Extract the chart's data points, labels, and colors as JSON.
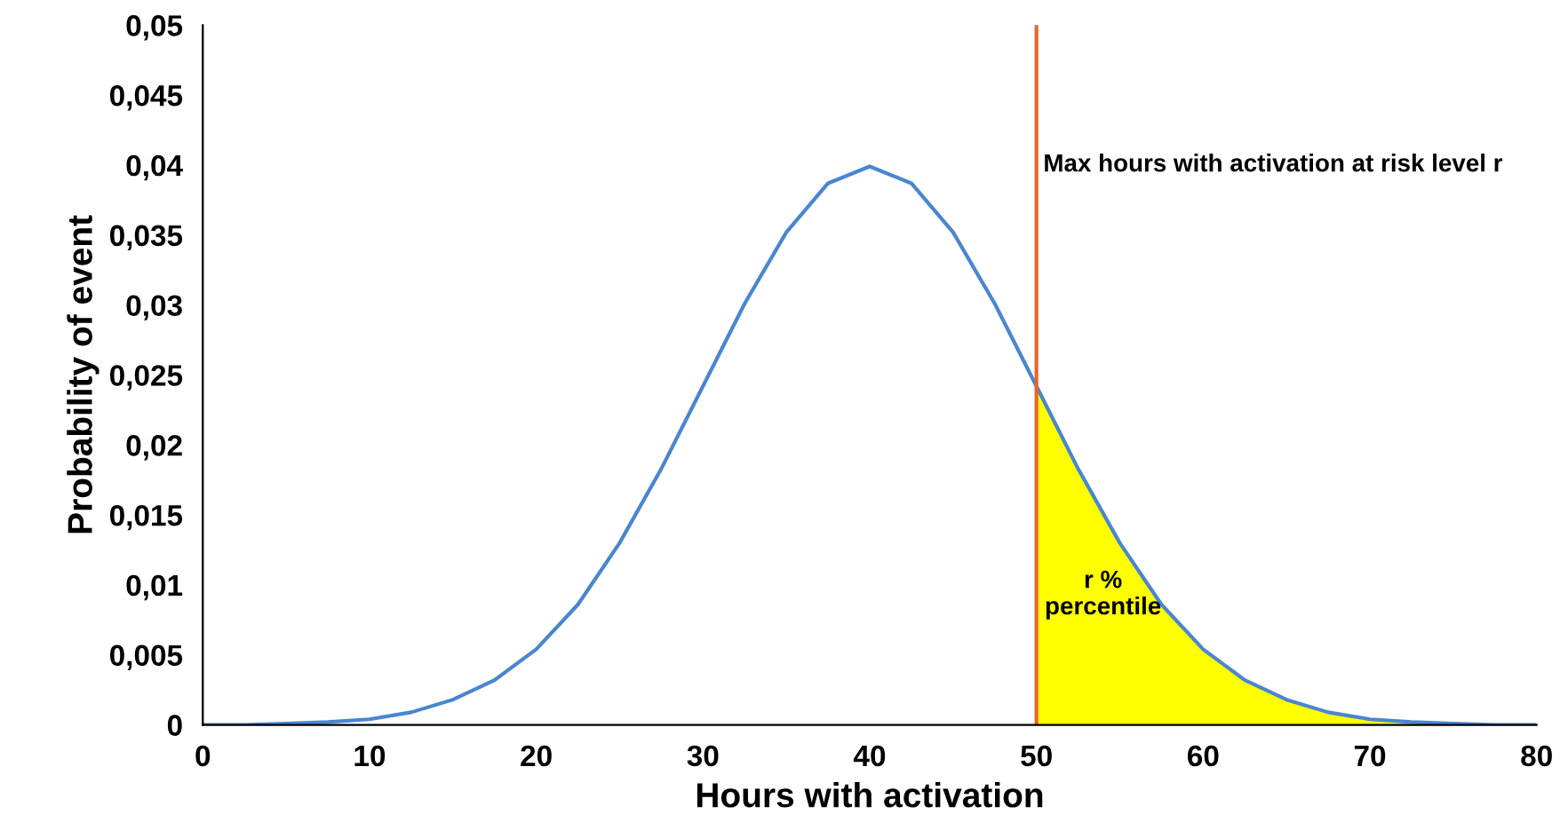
{
  "chart_data": {
    "type": "line",
    "xlabel": "Hours with activation",
    "ylabel": "Probability of event",
    "x": [
      0,
      2.5,
      5,
      7.5,
      10,
      12.5,
      15,
      17.5,
      20,
      22.5,
      25,
      27.5,
      30,
      32.5,
      35,
      37.5,
      40,
      42.5,
      45,
      47.5,
      50,
      52.5,
      55,
      57.5,
      60,
      62.5,
      65,
      67.5,
      70,
      72.5,
      75,
      77.5,
      80
    ],
    "series": [
      {
        "type": "area",
        "color": "#ffff00",
        "x": [
          50,
          52.5,
          55,
          57.5,
          60,
          62.5,
          65,
          67.5,
          70,
          72.5,
          75,
          77.5,
          80
        ],
        "values": [
          0.0242,
          0.0183,
          0.013,
          0.0086,
          0.0054,
          0.0032,
          0.0018,
          0.0009,
          0.0004,
          0.0002,
          0.0001,
          0,
          0
        ]
      },
      {
        "color": "#4a86d0",
        "values": [
          0,
          0,
          0.0001,
          0.0002,
          0.0004,
          0.0009,
          0.0018,
          0.0032,
          0.0054,
          0.0086,
          0.013,
          0.0183,
          0.0242,
          0.0301,
          0.0352,
          0.0387,
          0.0399,
          0.0387,
          0.0352,
          0.0301,
          0.0242,
          0.0183,
          0.013,
          0.0086,
          0.0054,
          0.0032,
          0.0018,
          0.0009,
          0.0004,
          0.0002,
          0.0001,
          0,
          0
        ]
      }
    ],
    "ref_lines": [
      {
        "axis": "x",
        "value": 50,
        "label": "Max hours with activation at risk level r",
        "color": "#e8642c"
      }
    ],
    "annotations": [
      {
        "text": "r %\npercentile",
        "x": 50.5,
        "y": 0.0093
      }
    ],
    "xlim": [
      0,
      80
    ],
    "xticks": [
      0,
      10,
      20,
      30,
      40,
      50,
      60,
      70,
      80
    ],
    "ylim": [
      0,
      0.05
    ],
    "yticks": [
      0,
      {
        "value": 0.005,
        "label": "0,005"
      },
      {
        "value": 0.01,
        "label": "0,01"
      },
      {
        "value": 0.015,
        "label": "0,015"
      },
      {
        "value": 0.02,
        "label": "0,02"
      },
      {
        "value": 0.025,
        "label": "0,025"
      },
      {
        "value": 0.03,
        "label": "0,03"
      },
      {
        "value": 0.035,
        "label": "0,035"
      },
      {
        "value": 0.04,
        "label": "0,04"
      },
      {
        "value": 0.045,
        "label": "0,045"
      },
      {
        "value": 0.05,
        "label": "0,05"
      }
    ],
    "grid": false,
    "legend": false,
    "marker": "none",
    "line_style": "solid"
  }
}
